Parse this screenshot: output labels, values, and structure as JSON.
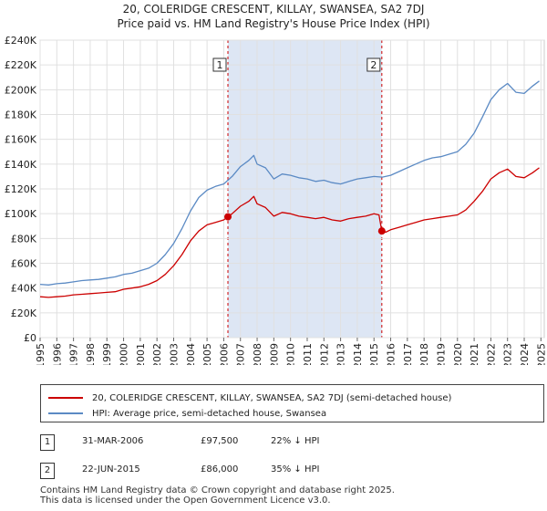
{
  "title_line1": "20, COLERIDGE CRESCENT, KILLAY, SWANSEA, SA2 7DJ",
  "title_line2": "Price paid vs. HM Land Registry's House Price Index (HPI)",
  "colors": {
    "property": "#cc0000",
    "hpi": "#5b8ac4",
    "highlight": "#dde6f4",
    "grid": "#e0e0e0"
  },
  "chart_data": {
    "type": "line",
    "title": "20, COLERIDGE CRESCENT, KILLAY, SWANSEA, SA2 7DJ — Price paid vs. HM Land Registry's House Price Index (HPI)",
    "xlabel": "",
    "ylabel": "",
    "xlim": [
      1995,
      2025.2
    ],
    "ylim": [
      0,
      240000
    ],
    "grid": true,
    "y_ticks": [
      {
        "value": 0,
        "label": "£0"
      },
      {
        "value": 20000,
        "label": "£20K"
      },
      {
        "value": 40000,
        "label": "£40K"
      },
      {
        "value": 60000,
        "label": "£60K"
      },
      {
        "value": 80000,
        "label": "£80K"
      },
      {
        "value": 100000,
        "label": "£100K"
      },
      {
        "value": 120000,
        "label": "£120K"
      },
      {
        "value": 140000,
        "label": "£140K"
      },
      {
        "value": 160000,
        "label": "£160K"
      },
      {
        "value": 180000,
        "label": "£180K"
      },
      {
        "value": 200000,
        "label": "£200K"
      },
      {
        "value": 220000,
        "label": "£220K"
      },
      {
        "value": 240000,
        "label": "£240K"
      }
    ],
    "x_ticks": [
      "1995",
      "1996",
      "1997",
      "1998",
      "1999",
      "2000",
      "2001",
      "2002",
      "2003",
      "2004",
      "2005",
      "2006",
      "2007",
      "2008",
      "2009",
      "2010",
      "2011",
      "2012",
      "2013",
      "2014",
      "2015",
      "2016",
      "2017",
      "2018",
      "2019",
      "2020",
      "2021",
      "2022",
      "2023",
      "2024",
      "2025"
    ],
    "series": [
      {
        "name": "HPI: Average price, semi-detached house, Swansea",
        "color": "#5b8ac4",
        "x": [
          1995.0,
          1995.5,
          1996.0,
          1996.5,
          1997.0,
          1997.5,
          1998.0,
          1998.5,
          1999.0,
          1999.5,
          2000.0,
          2000.5,
          2001.0,
          2001.5,
          2002.0,
          2002.5,
          2003.0,
          2003.5,
          2004.0,
          2004.5,
          2005.0,
          2005.5,
          2006.0,
          2006.5,
          2007.0,
          2007.5,
          2007.8,
          2008.0,
          2008.5,
          2009.0,
          2009.5,
          2010.0,
          2010.5,
          2011.0,
          2011.5,
          2012.0,
          2012.5,
          2013.0,
          2013.5,
          2014.0,
          2014.5,
          2015.0,
          2015.5,
          2016.0,
          2016.5,
          2017.0,
          2017.5,
          2018.0,
          2018.5,
          2019.0,
          2019.5,
          2020.0,
          2020.5,
          2021.0,
          2021.5,
          2022.0,
          2022.5,
          2023.0,
          2023.5,
          2024.0,
          2024.5,
          2024.9
        ],
        "values": [
          43000,
          42500,
          43500,
          44000,
          45000,
          46000,
          46500,
          47000,
          48000,
          49000,
          51000,
          52000,
          54000,
          56000,
          60000,
          67000,
          76000,
          88000,
          102000,
          113000,
          119000,
          122000,
          124000,
          130000,
          138000,
          143000,
          147000,
          140000,
          137000,
          128000,
          132000,
          131000,
          129000,
          128000,
          126000,
          127000,
          125000,
          124000,
          126000,
          128000,
          129000,
          130000,
          129500,
          131000,
          134000,
          137000,
          140000,
          143000,
          145000,
          146000,
          148000,
          150000,
          156000,
          165000,
          178000,
          192000,
          200000,
          205000,
          198000,
          197000,
          203000,
          207000
        ]
      },
      {
        "name": "20, COLERIDGE CRESCENT, KILLAY, SWANSEA, SA2 7DJ (semi-detached house)",
        "color": "#cc0000",
        "x": [
          1995.0,
          1995.5,
          1996.0,
          1996.5,
          1997.0,
          1997.5,
          1998.0,
          1998.5,
          1999.0,
          1999.5,
          2000.0,
          2000.5,
          2001.0,
          2001.5,
          2002.0,
          2002.5,
          2003.0,
          2003.5,
          2004.0,
          2004.5,
          2005.0,
          2005.5,
          2006.0,
          2006.25,
          2006.5,
          2007.0,
          2007.5,
          2007.8,
          2008.0,
          2008.5,
          2009.0,
          2009.5,
          2010.0,
          2010.5,
          2011.0,
          2011.5,
          2012.0,
          2012.5,
          2013.0,
          2013.5,
          2014.0,
          2014.5,
          2015.0,
          2015.3,
          2015.47,
          2015.7,
          2016.0,
          2016.5,
          2017.0,
          2017.5,
          2018.0,
          2018.5,
          2019.0,
          2019.5,
          2020.0,
          2020.5,
          2021.0,
          2021.5,
          2022.0,
          2022.5,
          2023.0,
          2023.5,
          2024.0,
          2024.5,
          2024.9
        ],
        "values": [
          33000,
          32500,
          33000,
          33500,
          34500,
          35000,
          35500,
          36000,
          36500,
          37000,
          39000,
          40000,
          41000,
          43000,
          46000,
          51000,
          58000,
          67000,
          78000,
          86000,
          91000,
          93000,
          95000,
          97500,
          100000,
          106000,
          110000,
          114000,
          108000,
          105000,
          98000,
          101000,
          100000,
          98000,
          97000,
          96000,
          97000,
          95000,
          94000,
          96000,
          97000,
          98000,
          100000,
          99000,
          86000,
          85000,
          87000,
          89000,
          91000,
          93000,
          95000,
          96000,
          97000,
          98000,
          99000,
          103000,
          110000,
          118000,
          128000,
          133000,
          136000,
          130000,
          129000,
          133000,
          137000
        ]
      }
    ],
    "sales": [
      {
        "id": "1",
        "x": 2006.25,
        "value": 97500,
        "date": "31-MAR-2006",
        "price": "£97,500",
        "hpi_diff": "22% ↓ HPI"
      },
      {
        "id": "2",
        "x": 2015.47,
        "value": 86000,
        "date": "22-JUN-2015",
        "price": "£86,000",
        "hpi_diff": "35% ↓ HPI"
      }
    ],
    "shaded_range": [
      2006.25,
      2015.47
    ]
  },
  "legend": {
    "property_label": "20, COLERIDGE CRESCENT, KILLAY, SWANSEA, SA2 7DJ (semi-detached house)",
    "hpi_label": "HPI: Average price, semi-detached house, Swansea"
  },
  "table": [
    {
      "id": "1",
      "date": "31-MAR-2006",
      "price": "£97,500",
      "diff": "22% ↓ HPI"
    },
    {
      "id": "2",
      "date": "22-JUN-2015",
      "price": "£86,000",
      "diff": "35% ↓ HPI"
    }
  ],
  "footer": {
    "line1": "Contains HM Land Registry data © Crown copyright and database right 2025.",
    "line2": "This data is licensed under the Open Government Licence v3.0."
  }
}
